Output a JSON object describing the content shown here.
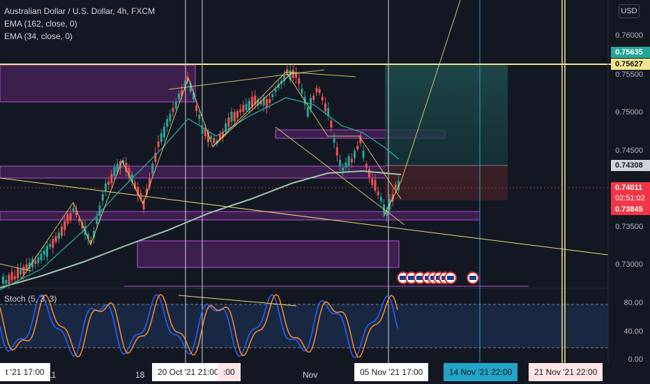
{
  "header": {
    "symbol_title": "Australian Dollar / U.S. Dollar, 4h, FXCM",
    "ema_long": "EMA (162, close, 0)",
    "ema_short": "EMA (34, close, 0)",
    "currency": "USD"
  },
  "price_axis": {
    "labels": [
      "0.76000",
      "0.75500",
      "0.75000",
      "0.74500",
      "0.73500",
      "0.73000"
    ],
    "badges": [
      {
        "label": "0.75635",
        "bg": "#26a69a",
        "fg": "#ffffff"
      },
      {
        "label": "0.75627",
        "bg": "#f0e68c",
        "fg": "#131722"
      },
      {
        "label": "0.74308",
        "bg": "#d1d4dc",
        "fg": "#131722"
      },
      {
        "label": "0.74011",
        "bg": "#f23645",
        "fg": "#ffffff"
      },
      {
        "label": "02:51:02",
        "bg": "#f23645",
        "fg": "#ffffff"
      },
      {
        "label": "0.73845",
        "bg": "#f23645",
        "fg": "#ffffff"
      }
    ]
  },
  "stochastic": {
    "title": "Stoch (5, 3, 3)",
    "levels": [
      "80.00",
      "40.00",
      "0.00"
    ]
  },
  "time_axis": {
    "labels": [
      {
        "text": "t '21   17:00",
        "boxed": true,
        "bg": "#ffffff",
        "fg": "#131722"
      },
      {
        "text": "11",
        "boxed": false
      },
      {
        "text": "18",
        "boxed": false
      },
      {
        "text": "20 Oct '21   21:00",
        "boxed": true,
        "bg": "#ffffff",
        "fg": "#131722"
      },
      {
        "text": ":00",
        "boxed": true,
        "bg": "#ffe4e6",
        "fg": "#131722"
      },
      {
        "text": "Nov",
        "boxed": false
      },
      {
        "text": "05 Nov '21   17:00",
        "boxed": true,
        "bg": "#ffffff",
        "fg": "#131722"
      },
      {
        "text": "14 Nov '21   22:00",
        "boxed": true,
        "bg": "#22a5c8",
        "fg": "#131722"
      },
      {
        "text": "21 Nov '21   22:00",
        "boxed": true,
        "bg": "#ffe4e6",
        "fg": "#131722"
      }
    ]
  },
  "colors": {
    "background": "#131722",
    "up_candle": "#26a69a",
    "down_candle": "#ef5350",
    "ema_long": "#9fc5b0",
    "ema_short": "#2aa79a",
    "zone_fill": "#3d1f4d",
    "zone_border": "#b44fd6",
    "trendline": "#e9dc7a",
    "stoch_k": "#2962ff",
    "stoch_d": "#ff8c2a"
  }
}
